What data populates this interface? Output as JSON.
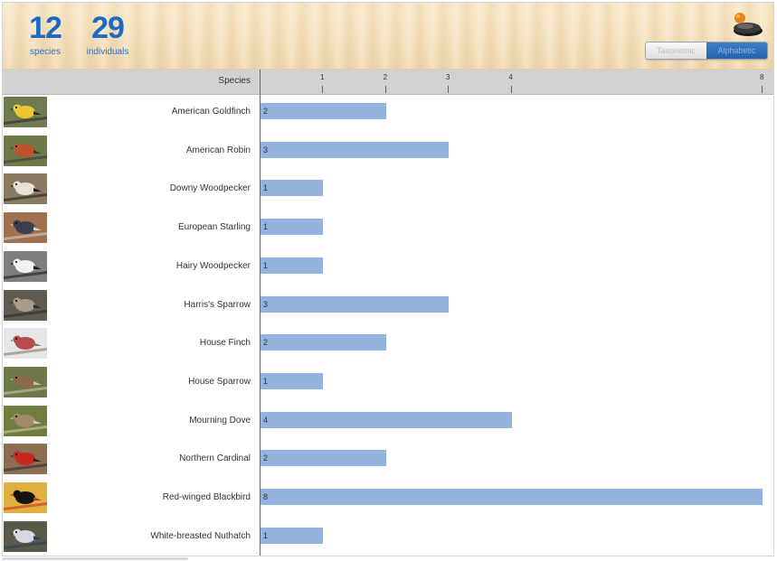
{
  "summary": {
    "species_count": "12",
    "species_label": "species",
    "individuals_count": "29",
    "individuals_label": "individuals"
  },
  "toggle": {
    "options": [
      "Taxonomic",
      "Alphabetic"
    ],
    "active": "Alphabetic"
  },
  "table": {
    "species_header": "Species",
    "axis_ticks": [
      "1",
      "2",
      "3",
      "4",
      "8"
    ]
  },
  "colors": {
    "bar": "#93b3de",
    "accent": "#1e69c2"
  },
  "chart_data": {
    "type": "bar",
    "orientation": "horizontal",
    "categories": [
      "American Goldfinch",
      "American Robin",
      "Downy Woodpecker",
      "European Starling",
      "Hairy Woodpecker",
      "Harris's Sparrow",
      "House Finch",
      "House Sparrow",
      "Mourning Dove",
      "Northern Cardinal",
      "Red-winged Blackbird",
      "White-breasted Nuthatch"
    ],
    "values": [
      2,
      3,
      1,
      1,
      1,
      3,
      2,
      1,
      4,
      2,
      8,
      1
    ],
    "xlabel": "",
    "ylabel": "Species",
    "xlim": [
      0,
      8
    ],
    "xticks": [
      1,
      2,
      3,
      4,
      8
    ]
  },
  "birds": [
    {
      "name": "American Goldfinch",
      "count": "2",
      "photo": "goldfinch-photo"
    },
    {
      "name": "American Robin",
      "count": "3",
      "photo": "robin-photo"
    },
    {
      "name": "Downy Woodpecker",
      "count": "1",
      "photo": "downy-woodpecker-photo"
    },
    {
      "name": "European Starling",
      "count": "1",
      "photo": "starling-photo"
    },
    {
      "name": "Hairy Woodpecker",
      "count": "1",
      "photo": "hairy-woodpecker-photo"
    },
    {
      "name": "Harris's Sparrow",
      "count": "3",
      "photo": "harris-sparrow-photo"
    },
    {
      "name": "House Finch",
      "count": "2",
      "photo": "house-finch-photo"
    },
    {
      "name": "House Sparrow",
      "count": "1",
      "photo": "house-sparrow-photo"
    },
    {
      "name": "Mourning Dove",
      "count": "4",
      "photo": "mourning-dove-photo"
    },
    {
      "name": "Northern Cardinal",
      "count": "2",
      "photo": "cardinal-photo"
    },
    {
      "name": "Red-winged Blackbird",
      "count": "8",
      "photo": "blackbird-photo"
    },
    {
      "name": "White-breasted Nuthatch",
      "count": "1",
      "photo": "nuthatch-photo"
    }
  ]
}
